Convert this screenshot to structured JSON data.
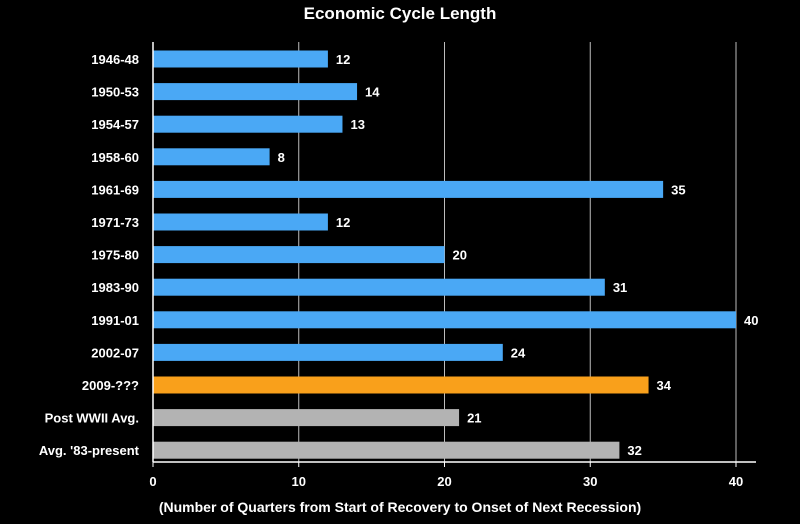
{
  "chart_data": {
    "type": "bar",
    "orientation": "horizontal",
    "title": "Economic Cycle Length",
    "xlabel": "(Number of Quarters from Start of Recovery to Onset of Next Recession)",
    "ylabel": "",
    "xlim": [
      0,
      40
    ],
    "xticks": [
      "0",
      "10",
      "20",
      "30",
      "40"
    ],
    "grid": "vertical",
    "legend": "none",
    "categories": [
      "1946-48",
      "1950-53",
      "1954-57",
      "1958-60",
      "1961-69",
      "1971-73",
      "1975-80",
      "1983-90",
      "1991-01",
      "2002-07",
      "2009-???",
      "Post WWII Avg.",
      "Avg. '83-present"
    ],
    "values": [
      12,
      14,
      13,
      8,
      35,
      12,
      20,
      31,
      40,
      24,
      34,
      21,
      32
    ],
    "value_labels": [
      "12",
      "14",
      "13",
      "8",
      "35",
      "12",
      "20",
      "31",
      "40",
      "24",
      "34",
      "21",
      "32"
    ],
    "bar_colors": [
      "#4aa8f5",
      "#4aa8f5",
      "#4aa8f5",
      "#4aa8f5",
      "#4aa8f5",
      "#4aa8f5",
      "#4aa8f5",
      "#4aa8f5",
      "#4aa8f5",
      "#4aa8f5",
      "#f9a01b",
      "#b3b3b3",
      "#b3b3b3"
    ]
  }
}
